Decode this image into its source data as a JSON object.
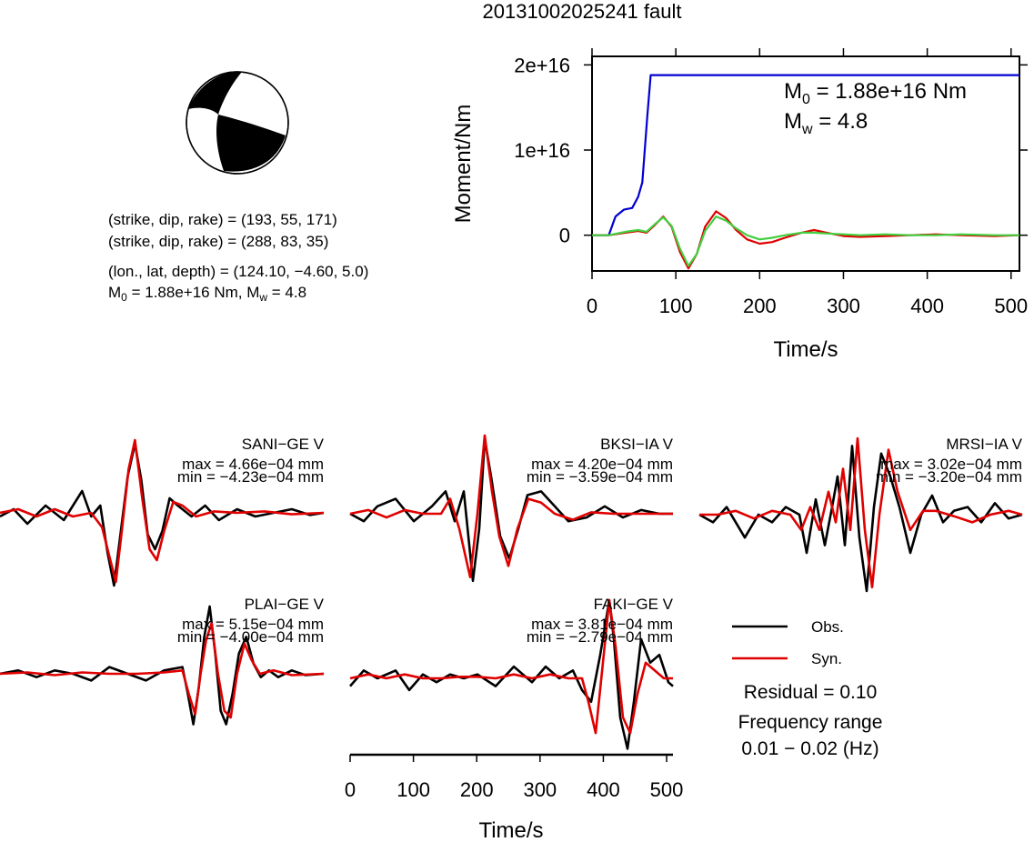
{
  "title": "20131002025241 fault",
  "colors": {
    "observed": "#000000",
    "synthetic": "#e00000",
    "moment_blue": "#0000d0",
    "moment_green": "#40d040",
    "beachball": "#000000"
  },
  "info": {
    "line1": "(strike, dip, rake) = (193, 55, 171)",
    "line2": "(strike, dip, rake) = (288, 83, 35)",
    "line3": "(lon., lat, depth) = (124.10, −4.60, 5.0)",
    "line4_pre": "M",
    "line4_sub": "0",
    "line4_mid": " = 1.88e+16 Nm, M",
    "line4_sub2": "w",
    "line4_post": " = 4.8"
  },
  "moment_plot": {
    "ylabel": "Moment/Nm",
    "xlabel": "Time/s",
    "xlim": [
      0,
      510
    ],
    "ylim": [
      -4200000000000000.0,
      2.1e+16
    ],
    "x_ticks": [
      "0",
      "100",
      "200",
      "300",
      "400",
      "500"
    ],
    "x_tick_values": [
      0,
      100,
      200,
      300,
      400,
      500
    ],
    "y_ticks": [
      "0",
      "1e+16",
      "2e+16"
    ],
    "y_tick_values": [
      0,
      1e+16,
      2e+16
    ],
    "m0_pre": "M",
    "m0_sub": "0",
    "m0_post": " = 1.88e+16 Nm",
    "mw_pre": "M",
    "mw_sub": "w",
    "mw_post": " = 4.8"
  },
  "chart_data": {
    "type": "line",
    "moment": {
      "series": [
        {
          "color": "blue",
          "x": [
            0,
            20,
            28,
            38,
            48,
            55,
            60,
            66,
            70,
            510
          ],
          "y": [
            0,
            0,
            2200000000000000.0,
            3000000000000000.0,
            3200000000000000.0,
            4500000000000000.0,
            6200000000000000.0,
            1.4e+16,
            1.88e+16,
            1.88e+16
          ]
        },
        {
          "color": "red",
          "x": [
            0,
            20,
            40,
            55,
            65,
            75,
            85,
            95,
            105,
            115,
            125,
            135,
            148,
            160,
            172,
            185,
            200,
            215,
            230,
            250,
            265,
            280,
            300,
            320,
            350,
            380,
            410,
            440,
            480,
            510
          ],
          "y": [
            0,
            0,
            300000000000000.0,
            500000000000000.0,
            300000000000000.0,
            1200000000000000.0,
            2200000000000000.0,
            1000000000000000.0,
            -2000000000000000.0,
            -3900000000000000.0,
            -2200000000000000.0,
            1000000000000000.0,
            2800000000000000.0,
            2000000000000000.0,
            600000000000000.0,
            -500000000000000.0,
            -1000000000000000.0,
            -800000000000000.0,
            -300000000000000.0,
            300000000000000.0,
            600000000000000.0,
            300000000000000.0,
            -100000000000000.0,
            -200000000000000.0,
            -100000000000000.0,
            0,
            100000000000000.0,
            0,
            -100000000000000.0,
            0
          ]
        },
        {
          "color": "green",
          "x": [
            0,
            20,
            40,
            55,
            65,
            75,
            85,
            95,
            105,
            115,
            125,
            135,
            148,
            160,
            172,
            185,
            200,
            215,
            230,
            250,
            265,
            280,
            300,
            320,
            350,
            380,
            410,
            440,
            480,
            510
          ],
          "y": [
            0,
            0,
            400000000000000.0,
            600000000000000.0,
            400000000000000.0,
            1300000000000000.0,
            2100000000000000.0,
            1100000000000000.0,
            -1600000000000000.0,
            -3600000000000000.0,
            -2200000000000000.0,
            500000000000000.0,
            2200000000000000.0,
            1700000000000000.0,
            800000000000000.0,
            0,
            -500000000000000.0,
            -300000000000000.0,
            0,
            300000000000000.0,
            300000000000000.0,
            200000000000000.0,
            100000000000000.0,
            0,
            100000000000000.0,
            0,
            0,
            100000000000000.0,
            0,
            0
          ]
        }
      ]
    },
    "waveforms": [
      {
        "station": "SANI−GE V",
        "max": "max = 4.66e−04 mm",
        "min": "min = −4.23e−04 mm",
        "obs": {
          "x": [
            0,
            15,
            30,
            50,
            70,
            90,
            100,
            110,
            118,
            125,
            132,
            140,
            148,
            155,
            162,
            170,
            178,
            186,
            195,
            210,
            225,
            240,
            260,
            280,
            300,
            320,
            340,
            355
          ],
          "y": [
            -0.05,
            0.05,
            -0.15,
            0.1,
            -0.1,
            0.3,
            -0.05,
            0.1,
            -0.55,
            -1.0,
            -0.3,
            0.5,
            0.95,
            0.45,
            -0.3,
            -0.5,
            -0.25,
            0.2,
            0.1,
            -0.05,
            0.1,
            -0.1,
            0.05,
            -0.05,
            0.0,
            0.05,
            -0.03,
            0.0
          ]
        },
        "syn": {
          "x": [
            0,
            20,
            40,
            60,
            80,
            100,
            112,
            120,
            127,
            134,
            141,
            148,
            156,
            164,
            172,
            180,
            190,
            200,
            215,
            235,
            260,
            290,
            320,
            355
          ],
          "y": [
            0.0,
            0.05,
            -0.05,
            0.05,
            -0.05,
            0.0,
            -0.2,
            -0.6,
            -0.95,
            -0.2,
            0.6,
            1.0,
            0.2,
            -0.5,
            -0.65,
            -0.25,
            0.15,
            0.1,
            -0.05,
            0.02,
            0.0,
            0.02,
            -0.02,
            0.0
          ]
        }
      },
      {
        "station": "BKSI−IA V",
        "max": "max = 4.20e−04 mm",
        "min": "min = −3.59e−04 mm",
        "obs": {
          "x": [
            0,
            15,
            30,
            50,
            70,
            90,
            105,
            115,
            125,
            135,
            142,
            148,
            155,
            165,
            175,
            185,
            195,
            210,
            225,
            240,
            260,
            280,
            300,
            320,
            340,
            355
          ],
          "y": [
            0.0,
            -0.1,
            0.1,
            0.2,
            -0.1,
            0.1,
            0.3,
            -0.1,
            0.3,
            -0.9,
            -0.2,
            1.0,
            0.5,
            -0.3,
            -0.6,
            -0.2,
            0.25,
            0.3,
            0.1,
            -0.1,
            -0.05,
            0.1,
            -0.05,
            0.05,
            0.0,
            0.0
          ]
        },
        "syn": {
          "x": [
            0,
            20,
            40,
            60,
            80,
            100,
            110,
            120,
            132,
            140,
            148,
            156,
            164,
            174,
            184,
            196,
            210,
            225,
            245,
            265,
            290,
            320,
            355
          ],
          "y": [
            0.0,
            0.05,
            -0.05,
            0.05,
            0.0,
            0.0,
            0.2,
            -0.2,
            -0.85,
            0.0,
            1.05,
            0.3,
            -0.3,
            -0.7,
            -0.2,
            0.2,
            0.15,
            0.0,
            -0.08,
            0.02,
            0.0,
            0.0,
            0.0
          ]
        }
      },
      {
        "station": "MRSI−IA V",
        "max": "max = 3.02e−04 mm",
        "min": "min = −3.20e−04 mm",
        "obs": {
          "x": [
            0,
            15,
            30,
            50,
            65,
            80,
            95,
            110,
            118,
            128,
            138,
            146,
            152,
            160,
            168,
            176,
            184,
            192,
            200,
            210,
            220,
            232,
            244,
            256,
            268,
            280,
            295,
            310,
            325,
            340,
            355
          ],
          "y": [
            0.0,
            -0.1,
            0.1,
            -0.3,
            0.0,
            -0.1,
            0.1,
            0.0,
            -0.5,
            0.2,
            -0.4,
            0.1,
            0.5,
            -0.4,
            0.9,
            -0.3,
            -1.0,
            0.1,
            0.8,
            0.5,
            0.1,
            -0.5,
            0.0,
            0.25,
            -0.1,
            0.05,
            0.1,
            -0.1,
            0.15,
            -0.05,
            0.0
          ]
        },
        "syn": {
          "x": [
            0,
            20,
            40,
            60,
            80,
            100,
            112,
            122,
            132,
            142,
            150,
            158,
            166,
            174,
            182,
            190,
            198,
            208,
            218,
            232,
            246,
            260,
            280,
            300,
            320,
            340,
            355
          ],
          "y": [
            0.0,
            0.0,
            0.05,
            -0.05,
            0.05,
            0.0,
            -0.2,
            0.1,
            -0.2,
            0.3,
            -0.1,
            0.6,
            -0.2,
            1.0,
            -0.2,
            -0.95,
            0.0,
            0.85,
            0.3,
            -0.2,
            0.05,
            0.05,
            -0.02,
            -0.1,
            0.0,
            0.05,
            0.0
          ]
        }
      },
      {
        "station": "PLAI−GE V",
        "max": "max = 5.15e−04 mm",
        "min": "min = −4.00e−04 mm",
        "obs": {
          "x": [
            0,
            20,
            40,
            60,
            80,
            100,
            120,
            140,
            160,
            180,
            200,
            206,
            212,
            218,
            224,
            230,
            236,
            242,
            248,
            255,
            262,
            270,
            278,
            286,
            295,
            305,
            320,
            335,
            355
          ],
          "y": [
            0.0,
            0.05,
            -0.05,
            0.05,
            0.0,
            -0.1,
            0.1,
            0.0,
            -0.1,
            0.05,
            0.1,
            -0.3,
            -0.75,
            -0.2,
            0.55,
            1.0,
            0.3,
            -0.55,
            -0.75,
            -0.3,
            0.3,
            0.55,
            0.15,
            -0.05,
            0.05,
            -0.05,
            0.05,
            -0.02,
            0.0
          ]
        },
        "syn": {
          "x": [
            0,
            30,
            60,
            90,
            120,
            150,
            180,
            200,
            207,
            214,
            220,
            226,
            232,
            239,
            246,
            253,
            260,
            268,
            276,
            285,
            300,
            320,
            355
          ],
          "y": [
            0.0,
            0.02,
            -0.02,
            0.02,
            0.0,
            0.0,
            0.02,
            0.05,
            -0.3,
            -0.6,
            0.0,
            0.5,
            0.75,
            0.0,
            -0.55,
            -0.65,
            0.0,
            0.45,
            0.2,
            0.0,
            0.05,
            -0.02,
            0.0
          ]
        }
      },
      {
        "station": "FAKI−GE V",
        "max": "max = 3.81e−04 mm",
        "min": "min = −2.79e−04 mm",
        "obs": {
          "x": [
            0,
            15,
            30,
            50,
            65,
            80,
            95,
            110,
            125,
            140,
            160,
            180,
            200,
            215,
            230,
            245,
            255,
            265,
            275,
            285,
            290,
            297,
            305,
            312,
            320,
            330,
            340,
            350,
            355
          ],
          "y": [
            -0.1,
            0.1,
            0.0,
            0.1,
            -0.15,
            0.05,
            -0.05,
            0.05,
            0.0,
            0.05,
            -0.1,
            0.15,
            -0.05,
            0.15,
            0.0,
            0.1,
            -0.15,
            -0.3,
            0.3,
            1.0,
            0.5,
            -0.5,
            -0.9,
            -0.3,
            0.5,
            0.2,
            0.3,
            -0.05,
            -0.1
          ]
        },
        "syn": {
          "x": [
            0,
            20,
            40,
            60,
            80,
            100,
            120,
            140,
            160,
            180,
            200,
            220,
            240,
            255,
            262,
            270,
            278,
            285,
            292,
            300,
            308,
            316,
            325,
            335,
            345,
            355
          ],
          "y": [
            0.0,
            0.05,
            0.0,
            0.05,
            0.0,
            0.0,
            0.02,
            0.02,
            0.0,
            0.05,
            0.0,
            0.05,
            0.0,
            0.0,
            -0.3,
            -0.7,
            0.2,
            1.0,
            0.4,
            -0.5,
            -0.7,
            -0.2,
            0.2,
            0.1,
            0.0,
            0.0
          ]
        }
      }
    ],
    "waveform_xaxis": {
      "xlabel": "Time/s",
      "xlim": [
        0,
        510
      ],
      "ticks": [
        "0",
        "100",
        "200",
        "300",
        "400",
        "500"
      ],
      "tick_values": [
        0,
        100,
        200,
        300,
        400,
        500
      ]
    }
  },
  "legend": {
    "obs": "Obs.",
    "syn": "Syn."
  },
  "residual": "Residual = 0.10",
  "freq_label": "Frequency range",
  "freq_value": "0.01 − 0.02 (Hz)"
}
